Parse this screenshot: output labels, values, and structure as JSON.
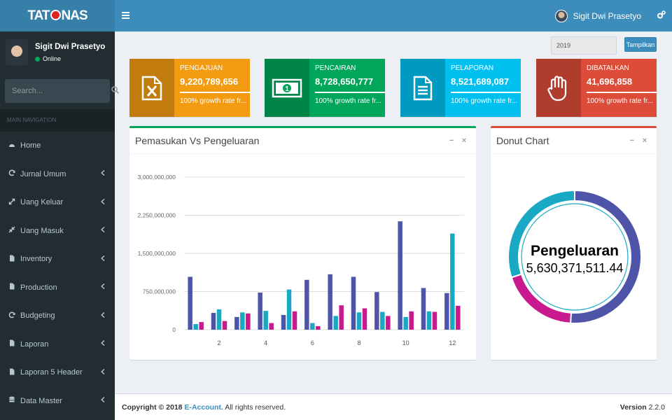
{
  "brand": {
    "logo_text_a": "TAT",
    "logo_text_b": "NAS"
  },
  "header": {
    "toggle_icon": "bars-icon",
    "user_name": "Sigit Dwi Prasetyo",
    "settings_icon": "gears-icon"
  },
  "sidebar": {
    "user_name": "Sigit Dwi Prasetyo",
    "status": "Online",
    "search_placeholder": "Search...",
    "nav_header": "MAIN NAVIGATION",
    "items": [
      {
        "label": "Home",
        "icon": "dashboard-icon",
        "has_caret": false
      },
      {
        "label": "Jurnal Umum",
        "icon": "refresh-icon",
        "has_caret": true
      },
      {
        "label": "Uang Keluar",
        "icon": "expand-icon",
        "has_caret": true
      },
      {
        "label": "Uang Masuk",
        "icon": "compress-icon",
        "has_caret": true
      },
      {
        "label": "Inventory",
        "icon": "file-icon",
        "has_caret": true
      },
      {
        "label": "Production",
        "icon": "file-icon",
        "has_caret": true
      },
      {
        "label": "Budgeting",
        "icon": "refresh-icon",
        "has_caret": true
      },
      {
        "label": "Laporan",
        "icon": "file-icon",
        "has_caret": true
      },
      {
        "label": "Laporan 5 Header",
        "icon": "file-icon",
        "has_caret": true
      },
      {
        "label": "Data Master",
        "icon": "database-icon",
        "has_caret": true
      }
    ]
  },
  "filter": {
    "year": "2019",
    "button": "Tampilkan"
  },
  "info_boxes": [
    {
      "label": "PENGAJUAN",
      "value": "9,220,789,656",
      "desc": "100% growth rate fr...",
      "color": "#f39c12",
      "icon": "file-excel-icon",
      "progress": 1.0
    },
    {
      "label": "PENCAIRAN",
      "value": "8,728,650,777",
      "desc": "100% growth rate fr...",
      "color": "#00a65a",
      "icon": "money-icon",
      "progress": 1.0
    },
    {
      "label": "PELAPORAN",
      "value": "8,521,689,087",
      "desc": "100% growth rate fr...",
      "color": "#00c0ef",
      "icon": "file-text-icon",
      "progress": 1.0
    },
    {
      "label": "DIBATALKAN",
      "value": "41,696,858",
      "desc": "100% growth rate fr...",
      "color": "#dd4b39",
      "icon": "hand-stop-icon",
      "progress": 1.0
    }
  ],
  "bar_box": {
    "title": "Pemasukan Vs Pengeluaran",
    "minimize": "−",
    "close": "×",
    "border_color": "#00a65a"
  },
  "donut_box": {
    "title": "Donut Chart",
    "minimize": "−",
    "close": "×",
    "border_color": "#dd4b39"
  },
  "chart_data": [
    {
      "type": "bar",
      "categories": [
        "1",
        "2",
        "3",
        "4",
        "5",
        "6",
        "7",
        "8",
        "9",
        "10",
        "11",
        "12"
      ],
      "tick_labels": [
        "",
        "2",
        "",
        "4",
        "",
        "6",
        "",
        "8",
        "",
        "10",
        "",
        "12"
      ],
      "y_tick_labels": [
        "0",
        "750,000,000",
        "1,500,000,000",
        "2,250,000,000",
        "3,000,000,000"
      ],
      "ylim": [
        0,
        3000000000
      ],
      "colors": [
        "#4e55a8",
        "#19a9c4",
        "#c8198f"
      ],
      "series": [
        {
          "values": [
            1040000000,
            330000000,
            250000000,
            730000000,
            290000000,
            980000000,
            1090000000,
            1040000000,
            740000000,
            2130000000,
            820000000,
            720000000
          ]
        },
        {
          "values": [
            110000000,
            400000000,
            340000000,
            370000000,
            790000000,
            130000000,
            270000000,
            340000000,
            350000000,
            250000000,
            360000000,
            1890000000
          ]
        },
        {
          "values": [
            150000000,
            170000000,
            320000000,
            130000000,
            360000000,
            70000000,
            480000000,
            420000000,
            270000000,
            360000000,
            350000000,
            470000000
          ]
        }
      ]
    },
    {
      "type": "pie",
      "center_label": "Pengeluaran",
      "center_value": "5,630,371,511.44",
      "slices": [
        {
          "value": 0.51,
          "color": "#4e55a8"
        },
        {
          "value": 0.19,
          "color": "#c8198f"
        },
        {
          "value": 0.3,
          "color": "#19a9c4"
        }
      ]
    }
  ],
  "footer": {
    "copyright_prefix": "Copyright © 2018 ",
    "link": "E-Account.",
    "suffix": " All rights reserved.",
    "version_label": "Version",
    "version": " 2.2.0"
  }
}
